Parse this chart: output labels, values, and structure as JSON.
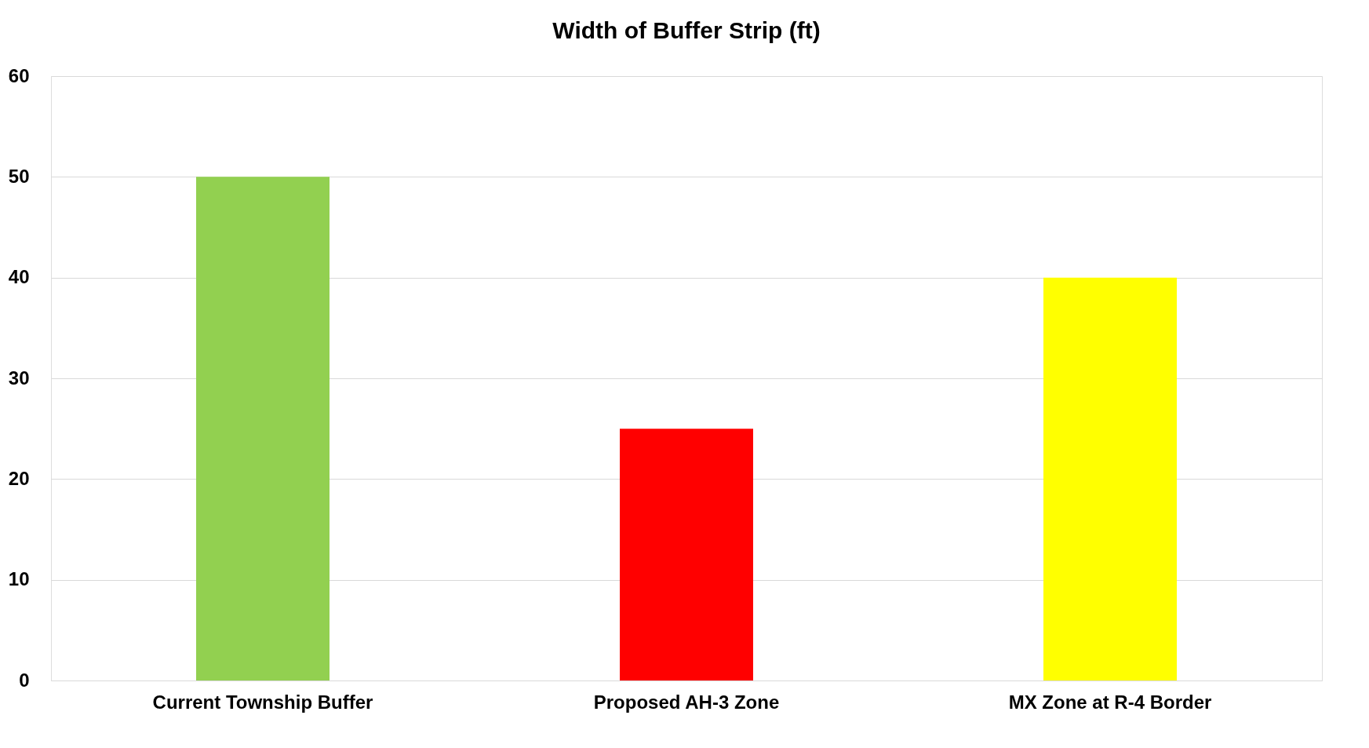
{
  "chart_data": {
    "type": "bar",
    "title": "Width of Buffer Strip (ft)",
    "categories": [
      "Current Township Buffer",
      "Proposed AH-3 Zone",
      "MX Zone at R-4 Border"
    ],
    "values": [
      50,
      25,
      40
    ],
    "colors": [
      "#92d050",
      "#ff0000",
      "#ffff00"
    ],
    "ylim": [
      0,
      60
    ],
    "yticks": [
      0,
      10,
      20,
      30,
      40,
      50,
      60
    ],
    "grid": "y"
  }
}
